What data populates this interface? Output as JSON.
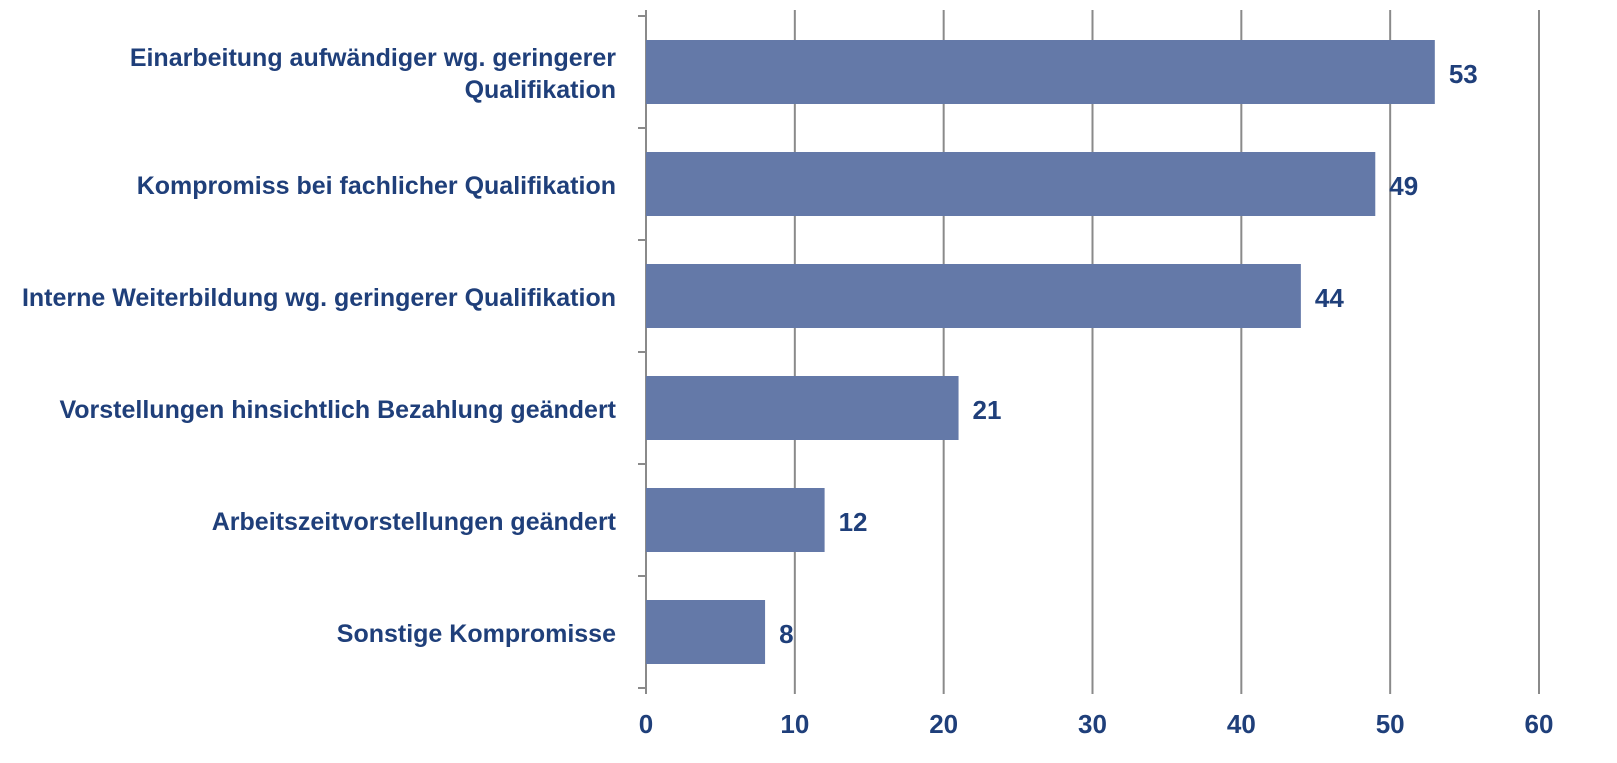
{
  "chart_data": {
    "type": "bar",
    "orientation": "horizontal",
    "categories": [
      "Einarbeitung aufwändiger wg. geringerer Qualifikation",
      "Kompromiss bei fachlicher Qualifikation",
      "Interne Weiterbildung wg. geringerer Qualifikation",
      "Vorstellungen hinsichtlich Bezahlung geändert",
      "Arbeitszeitvorstellungen geändert",
      "Sonstige Kompromisse"
    ],
    "values": [
      53,
      49,
      44,
      21,
      12,
      8
    ],
    "color": "#6479a8",
    "xlim": [
      0,
      60
    ],
    "xticks": [
      0,
      10,
      20,
      30,
      40,
      50,
      60
    ],
    "grid": true
  }
}
